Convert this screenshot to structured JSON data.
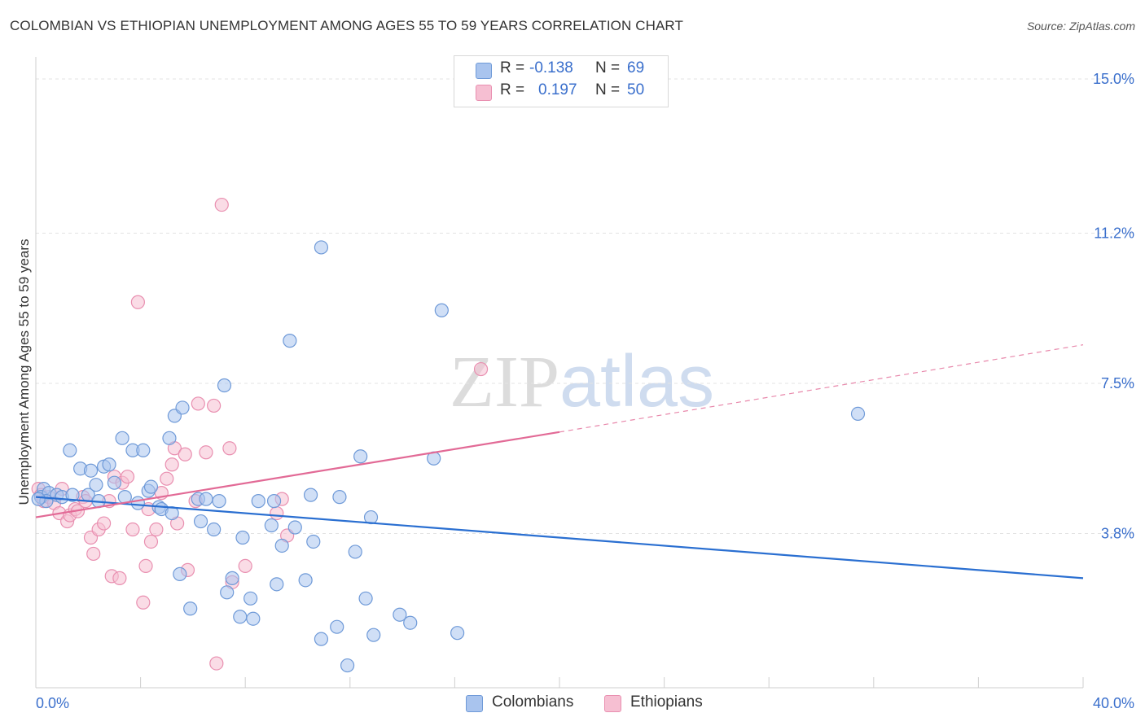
{
  "title": "COLOMBIAN VS ETHIOPIAN UNEMPLOYMENT AMONG AGES 55 TO 59 YEARS CORRELATION CHART",
  "source": "Source: ZipAtlas.com",
  "watermark": {
    "zip": "ZIP",
    "atlas": "atlas"
  },
  "legend_top": {
    "rows": [
      {
        "r_label": "R =",
        "r_value": "-0.138",
        "n_label": "N =",
        "n_value": "69"
      },
      {
        "r_label": "R =",
        "r_value": "0.197",
        "n_label": "N =",
        "n_value": "50"
      }
    ]
  },
  "legend_bottom": [
    {
      "label": "Colombians"
    },
    {
      "label": "Ethiopians"
    }
  ],
  "colors": {
    "colombians_fill": "#a9c4ee",
    "colombians_stroke": "#6f9ad8",
    "colombians_line": "#2a6fd1",
    "ethiopians_fill": "#f6bfd2",
    "ethiopians_stroke": "#e98fb0",
    "ethiopians_line": "#e26a96",
    "tick_label": "#3a6fcc",
    "grid": "#e3e3e3"
  },
  "chart_data": {
    "type": "scatter",
    "title": "COLOMBIAN VS ETHIOPIAN UNEMPLOYMENT AMONG AGES 55 TO 59 YEARS CORRELATION CHART",
    "xlabel": "",
    "ylabel": "Unemployment Among Ages 55 to 59 years",
    "xlim": [
      0,
      40
    ],
    "ylim": [
      0,
      15.5
    ],
    "x_tick_labels": [
      "0.0%",
      "40.0%"
    ],
    "y_ticks": [
      3.8,
      7.5,
      11.2,
      15.0
    ],
    "y_tick_labels": [
      "3.8%",
      "7.5%",
      "11.2%",
      "15.0%"
    ],
    "grid": true,
    "legend": "top-center",
    "series": [
      {
        "name": "Colombians",
        "R": -0.138,
        "N": 69,
        "trend": {
          "x": [
            0,
            40
          ],
          "y": [
            4.7,
            2.7
          ]
        },
        "points": [
          [
            0.3,
            4.9
          ],
          [
            0.2,
            4.7
          ],
          [
            0.5,
            4.8
          ],
          [
            0.4,
            4.6
          ],
          [
            0.1,
            4.65
          ],
          [
            0.8,
            4.75
          ],
          [
            1.0,
            4.7
          ],
          [
            1.4,
            4.75
          ],
          [
            1.3,
            5.85
          ],
          [
            1.7,
            5.4
          ],
          [
            2.0,
            4.75
          ],
          [
            2.1,
            5.35
          ],
          [
            2.3,
            5.0
          ],
          [
            2.4,
            4.6
          ],
          [
            2.6,
            5.45
          ],
          [
            2.8,
            5.5
          ],
          [
            3.0,
            5.05
          ],
          [
            3.3,
            6.15
          ],
          [
            3.4,
            4.7
          ],
          [
            3.7,
            5.85
          ],
          [
            3.9,
            4.55
          ],
          [
            4.1,
            5.85
          ],
          [
            4.3,
            4.85
          ],
          [
            4.4,
            4.95
          ],
          [
            4.7,
            4.45
          ],
          [
            4.8,
            4.4
          ],
          [
            5.1,
            6.15
          ],
          [
            5.2,
            4.3
          ],
          [
            5.3,
            6.7
          ],
          [
            5.5,
            2.8
          ],
          [
            5.6,
            6.9
          ],
          [
            5.9,
            1.95
          ],
          [
            6.2,
            4.65
          ],
          [
            6.3,
            4.1
          ],
          [
            6.5,
            4.65
          ],
          [
            6.8,
            3.9
          ],
          [
            7.0,
            4.6
          ],
          [
            7.2,
            7.45
          ],
          [
            7.3,
            2.35
          ],
          [
            7.5,
            2.7
          ],
          [
            7.8,
            1.75
          ],
          [
            7.9,
            3.7
          ],
          [
            8.2,
            2.2
          ],
          [
            8.3,
            1.7
          ],
          [
            8.5,
            4.6
          ],
          [
            9.0,
            4.0
          ],
          [
            9.1,
            4.6
          ],
          [
            9.2,
            2.55
          ],
          [
            9.4,
            3.5
          ],
          [
            9.7,
            8.55
          ],
          [
            9.9,
            3.95
          ],
          [
            10.3,
            2.65
          ],
          [
            10.5,
            4.75
          ],
          [
            10.6,
            3.6
          ],
          [
            10.9,
            10.85
          ],
          [
            10.9,
            1.2
          ],
          [
            11.5,
            1.5
          ],
          [
            11.6,
            4.7
          ],
          [
            11.9,
            0.55
          ],
          [
            12.2,
            3.35
          ],
          [
            12.4,
            5.7
          ],
          [
            12.6,
            2.2
          ],
          [
            12.8,
            4.2
          ],
          [
            12.9,
            1.3
          ],
          [
            13.9,
            1.8
          ],
          [
            14.3,
            1.6
          ],
          [
            15.2,
            5.65
          ],
          [
            16.1,
            1.35
          ],
          [
            31.4,
            6.75
          ],
          [
            15.5,
            9.3
          ]
        ]
      },
      {
        "name": "Ethiopians",
        "R": 0.197,
        "N": 50,
        "trend": {
          "x": [
            0,
            20
          ],
          "y": [
            4.2,
            6.3
          ],
          "dashed_extension": {
            "x": [
              20,
              40
            ],
            "y": [
              6.3,
              8.45
            ]
          }
        },
        "points": [
          [
            0.1,
            4.9
          ],
          [
            0.2,
            4.75
          ],
          [
            0.3,
            4.6
          ],
          [
            0.5,
            4.7
          ],
          [
            0.7,
            4.55
          ],
          [
            0.9,
            4.3
          ],
          [
            1.0,
            4.9
          ],
          [
            1.2,
            4.1
          ],
          [
            1.3,
            4.25
          ],
          [
            1.5,
            4.4
          ],
          [
            1.6,
            4.35
          ],
          [
            1.8,
            4.7
          ],
          [
            1.9,
            4.6
          ],
          [
            2.1,
            3.7
          ],
          [
            2.2,
            3.3
          ],
          [
            2.4,
            3.9
          ],
          [
            2.6,
            4.05
          ],
          [
            2.8,
            4.6
          ],
          [
            2.9,
            2.75
          ],
          [
            3.0,
            5.2
          ],
          [
            3.2,
            2.7
          ],
          [
            3.3,
            5.05
          ],
          [
            3.5,
            5.2
          ],
          [
            3.7,
            3.9
          ],
          [
            3.9,
            9.5
          ],
          [
            4.1,
            2.1
          ],
          [
            4.2,
            3.0
          ],
          [
            4.3,
            4.4
          ],
          [
            4.4,
            3.6
          ],
          [
            4.6,
            3.9
          ],
          [
            4.8,
            4.8
          ],
          [
            5.0,
            5.15
          ],
          [
            5.2,
            5.5
          ],
          [
            5.3,
            5.9
          ],
          [
            5.4,
            4.05
          ],
          [
            5.7,
            5.75
          ],
          [
            5.8,
            2.9
          ],
          [
            6.1,
            4.6
          ],
          [
            6.2,
            7.0
          ],
          [
            6.5,
            5.8
          ],
          [
            6.8,
            6.95
          ],
          [
            7.1,
            11.9
          ],
          [
            7.4,
            5.9
          ],
          [
            7.5,
            2.6
          ],
          [
            8.0,
            3.0
          ],
          [
            9.2,
            4.3
          ],
          [
            9.4,
            4.65
          ],
          [
            9.6,
            3.75
          ],
          [
            17.0,
            7.85
          ],
          [
            6.9,
            0.6
          ]
        ]
      }
    ]
  },
  "axes": {
    "ylabel": "Unemployment Among Ages 55 to 59 years",
    "x_left_label": "0.0%",
    "x_right_label": "40.0%",
    "y_tick_labels": [
      "3.8%",
      "7.5%",
      "11.2%",
      "15.0%"
    ]
  }
}
